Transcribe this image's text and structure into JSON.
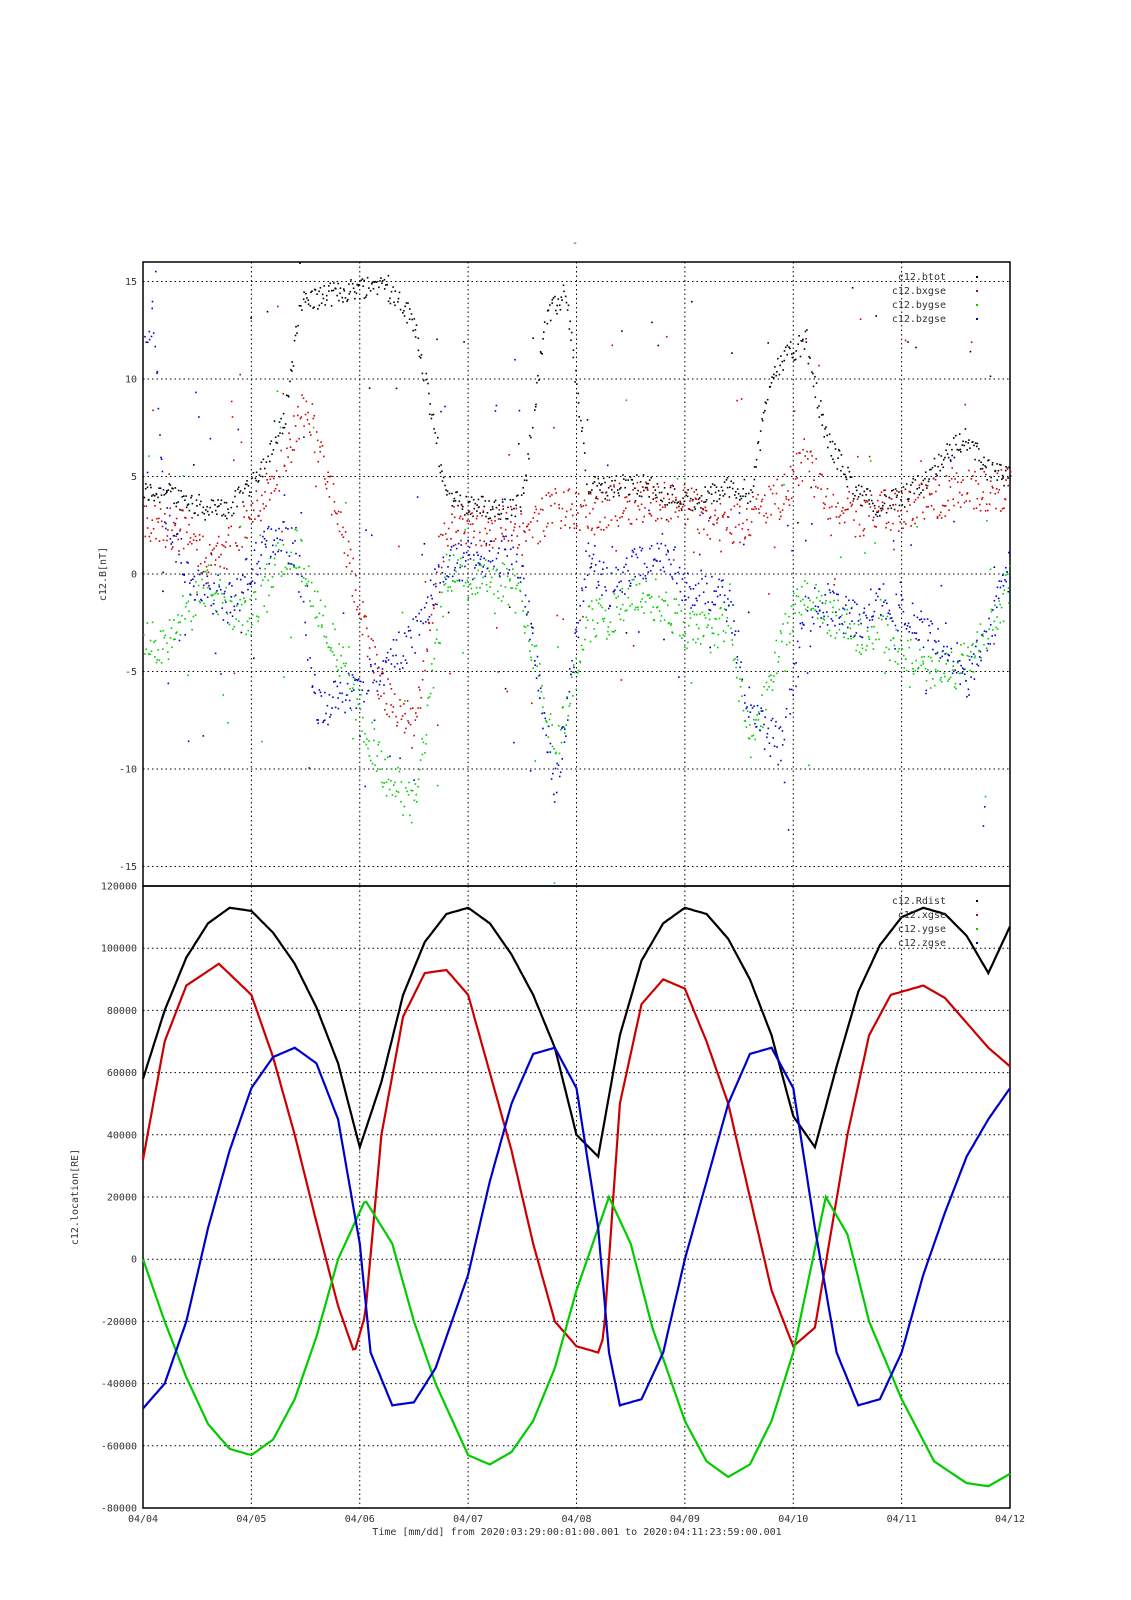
{
  "title_mark": "-",
  "time_axis": {
    "ticks": [
      "04/04",
      "04/05",
      "04/06",
      "04/07",
      "04/08",
      "04/09",
      "04/10",
      "04/11",
      "04/12"
    ],
    "label": "Time [mm/dd]  from 2020:03:29:00:01:00.001  to  2020:04:11:23:59:00.001"
  },
  "colors": {
    "black": "#000000",
    "red": "#cc0000",
    "green": "#00cc00",
    "blue": "#0000cc"
  },
  "chart_data": [
    {
      "type": "scatter",
      "ylabel": "c12.B[nT]",
      "ylim": [
        -16,
        16
      ],
      "yticks": [
        -15,
        -10,
        -5,
        0,
        5,
        10,
        15
      ],
      "xlim_days": [
        0,
        8
      ],
      "grid": true,
      "legend_position": "top-right",
      "series": [
        {
          "name": "c12.btot",
          "color": "#000000",
          "x_days": [
            0.2,
            0.4,
            0.6,
            0.8,
            1.0,
            1.2,
            1.3,
            1.45,
            2.2,
            2.5,
            2.8,
            3.0,
            3.2,
            3.4,
            3.5,
            3.7,
            3.9,
            4.1,
            4.3,
            4.6,
            4.8,
            5.0,
            5.2,
            5.4,
            5.6,
            5.8,
            6.1,
            6.3,
            6.6,
            6.8,
            7.0,
            7.2,
            7.4,
            7.6,
            7.8,
            8.0
          ],
          "values": [
            4.2,
            3.8,
            3.3,
            3.4,
            4.8,
            6.5,
            8.0,
            14.0,
            15.0,
            13.0,
            3.8,
            3.6,
            3.4,
            3.3,
            3.9,
            13.0,
            14.5,
            4.4,
            4.5,
            4.6,
            4.2,
            3.8,
            4.0,
            4.5,
            4.2,
            10.5,
            12.0,
            7.0,
            4.0,
            3.6,
            3.9,
            4.8,
            6.2,
            7.0,
            5.3,
            4.9
          ]
        },
        {
          "name": "c12.bxgse",
          "color": "#cc0000",
          "x_days": [
            0.2,
            0.4,
            0.6,
            0.8,
            1.0,
            1.2,
            1.3,
            1.5,
            2.2,
            2.5,
            2.8,
            3.0,
            3.2,
            3.4,
            3.5,
            3.8,
            4.1,
            4.3,
            4.6,
            4.8,
            5.0,
            5.2,
            5.4,
            5.6,
            5.9,
            6.1,
            6.3,
            6.6,
            6.8,
            7.0,
            7.2,
            7.4,
            7.6,
            7.8,
            8.0
          ],
          "values": [
            2.5,
            2.2,
            0.6,
            1.5,
            3.0,
            5.0,
            5.8,
            9.0,
            -6.0,
            -8.0,
            2.5,
            2.6,
            2.3,
            2.8,
            2.0,
            3.5,
            3.0,
            3.5,
            3.8,
            3.8,
            3.6,
            3.0,
            2.5,
            3.0,
            4.0,
            6.0,
            3.8,
            3.0,
            3.5,
            3.2,
            3.8,
            4.0,
            4.3,
            4.2,
            4.5
          ]
        },
        {
          "name": "c12.bygse",
          "color": "#00cc00",
          "x_days": [
            0.2,
            0.3,
            0.4,
            0.6,
            0.8,
            1.0,
            1.2,
            1.4,
            2.2,
            2.5,
            2.8,
            3.0,
            3.2,
            3.4,
            3.5,
            3.8,
            4.1,
            4.3,
            4.6,
            4.8,
            5.0,
            5.2,
            5.4,
            5.6,
            5.9,
            6.1,
            6.3,
            6.6,
            6.8,
            7.0,
            7.2,
            7.4,
            7.6,
            7.8,
            8.0
          ],
          "values": [
            -3.5,
            -3.2,
            -1.5,
            -0.5,
            -2.0,
            -2.2,
            0.5,
            1.5,
            -10.0,
            -12.0,
            0.2,
            -0.2,
            0.1,
            -0.6,
            -1.5,
            -9.0,
            -2.5,
            -2.0,
            -1.0,
            -1.5,
            -2.8,
            -3.0,
            -2.5,
            -9.0,
            -3.0,
            -1.0,
            -2.0,
            -3.0,
            -2.8,
            -4.0,
            -5.0,
            -5.0,
            -4.5,
            -3.0,
            -0.5
          ]
        },
        {
          "name": "c12.bzgse",
          "color": "#0000cc",
          "x_days": [
            0.1,
            0.2,
            0.3,
            0.4,
            0.6,
            0.8,
            1.0,
            1.2,
            1.4,
            1.6,
            2.2,
            2.5,
            2.8,
            3.0,
            3.2,
            3.4,
            3.5,
            3.8,
            4.1,
            4.3,
            4.6,
            4.8,
            5.0,
            5.2,
            5.4,
            5.6,
            5.9,
            6.1,
            6.3,
            6.6,
            6.8,
            7.0,
            7.2,
            7.4,
            7.6,
            7.8,
            8.0
          ],
          "values": [
            13.0,
            2.5,
            1.5,
            0.0,
            -0.8,
            -1.5,
            0.3,
            2.0,
            1.5,
            -7.0,
            -5.0,
            -3.0,
            0.7,
            0.7,
            0.9,
            1.2,
            -0.5,
            -11.0,
            1.0,
            -1.0,
            0.8,
            1.2,
            -0.5,
            -1.0,
            -1.5,
            -7.0,
            -9.0,
            -2.0,
            -1.5,
            -2.5,
            -1.0,
            -2.0,
            -3.0,
            -3.5,
            -5.5,
            -3.0,
            0.5
          ]
        }
      ]
    },
    {
      "type": "line",
      "ylabel": "c12.location[RE]",
      "ylim": [
        -80000,
        120000
      ],
      "yticks": [
        -80000,
        -60000,
        -40000,
        -20000,
        0,
        20000,
        40000,
        60000,
        80000,
        100000,
        120000
      ],
      "xlim_days": [
        0,
        8
      ],
      "grid": true,
      "legend_position": "top-right",
      "series": [
        {
          "name": "c12.Rdist",
          "color": "#000000",
          "x_days": [
            0,
            0.2,
            0.4,
            0.6,
            0.8,
            1.0,
            1.2,
            1.4,
            1.6,
            1.8,
            2.0,
            2.2,
            2.4,
            2.6,
            2.8,
            3.0,
            3.2,
            3.4,
            3.6,
            3.8,
            4.0,
            4.2,
            4.4,
            4.6,
            4.8,
            5.0,
            5.2,
            5.4,
            5.6,
            5.8,
            6.0,
            6.2,
            6.4,
            6.6,
            6.8,
            7.0,
            7.2,
            7.4,
            7.6,
            7.8,
            8.0
          ],
          "values": [
            58000,
            80000,
            97000,
            108000,
            113000,
            112000,
            105000,
            95000,
            81000,
            63000,
            36000,
            57000,
            85000,
            102000,
            111000,
            113000,
            108000,
            98000,
            85000,
            68000,
            40000,
            33000,
            72000,
            96000,
            108000,
            113000,
            111000,
            103000,
            90000,
            72000,
            46000,
            36000,
            62000,
            86000,
            101000,
            110000,
            113000,
            111000,
            104000,
            92000,
            107000
          ]
        },
        {
          "name": "c12.xgse",
          "color": "#cc0000",
          "x_days": [
            0,
            0.2,
            0.4,
            0.7,
            1.0,
            1.2,
            1.4,
            1.6,
            1.8,
            1.95,
            2.05,
            2.2,
            2.4,
            2.6,
            2.8,
            3.0,
            3.2,
            3.4,
            3.6,
            3.8,
            4.0,
            4.2,
            4.25,
            4.4,
            4.6,
            4.8,
            5.0,
            5.2,
            5.4,
            5.6,
            5.8,
            6.0,
            6.2,
            6.5,
            6.7,
            6.9,
            7.2,
            7.4,
            7.6,
            7.8,
            8.0
          ],
          "values": [
            32000,
            70000,
            88000,
            95000,
            85000,
            65000,
            40000,
            12000,
            -15000,
            -30000,
            -18000,
            40000,
            78000,
            92000,
            93000,
            85000,
            60000,
            35000,
            5000,
            -20000,
            -28000,
            -30000,
            -25000,
            50000,
            82000,
            90000,
            87000,
            70000,
            50000,
            20000,
            -10000,
            -28000,
            -22000,
            40000,
            72000,
            85000,
            88000,
            84000,
            76000,
            68000,
            62000
          ]
        },
        {
          "name": "c12.ygse",
          "color": "#00cc00",
          "x_days": [
            0,
            0.2,
            0.4,
            0.6,
            0.8,
            1.0,
            1.2,
            1.4,
            1.6,
            1.8,
            2.05,
            2.3,
            2.5,
            2.7,
            3.0,
            3.2,
            3.4,
            3.6,
            3.8,
            4.0,
            4.3,
            4.5,
            4.7,
            5.0,
            5.2,
            5.4,
            5.6,
            5.8,
            6.0,
            6.3,
            6.5,
            6.7,
            7.0,
            7.3,
            7.6,
            7.8,
            8.0
          ],
          "values": [
            0,
            -20000,
            -38000,
            -53000,
            -61000,
            -63000,
            -58000,
            -45000,
            -25000,
            0,
            19000,
            5000,
            -20000,
            -40000,
            -63000,
            -66000,
            -62000,
            -52000,
            -35000,
            -10000,
            20000,
            5000,
            -22000,
            -52000,
            -65000,
            -70000,
            -66000,
            -52000,
            -30000,
            20000,
            8000,
            -20000,
            -45000,
            -65000,
            -72000,
            -73000,
            -69000
          ]
        },
        {
          "name": "c12.zgse",
          "color": "#0000cc",
          "x_days": [
            0,
            0.2,
            0.4,
            0.6,
            0.8,
            1.0,
            1.2,
            1.4,
            1.6,
            1.8,
            2.0,
            2.1,
            2.3,
            2.5,
            2.7,
            3.0,
            3.2,
            3.4,
            3.6,
            3.8,
            4.0,
            4.2,
            4.3,
            4.4,
            4.6,
            4.8,
            5.0,
            5.2,
            5.4,
            5.6,
            5.8,
            6.0,
            6.2,
            6.4,
            6.6,
            6.8,
            7.0,
            7.2,
            7.4,
            7.6,
            7.8,
            8.0
          ],
          "values": [
            -48000,
            -40000,
            -20000,
            10000,
            35000,
            55000,
            65000,
            68000,
            63000,
            45000,
            5000,
            -30000,
            -47000,
            -46000,
            -35000,
            -5000,
            25000,
            50000,
            66000,
            68000,
            55000,
            10000,
            -30000,
            -47000,
            -45000,
            -30000,
            0,
            25000,
            50000,
            66000,
            68000,
            55000,
            10000,
            -30000,
            -47000,
            -45000,
            -30000,
            -5000,
            15000,
            33000,
            45000,
            55000
          ]
        }
      ]
    }
  ]
}
